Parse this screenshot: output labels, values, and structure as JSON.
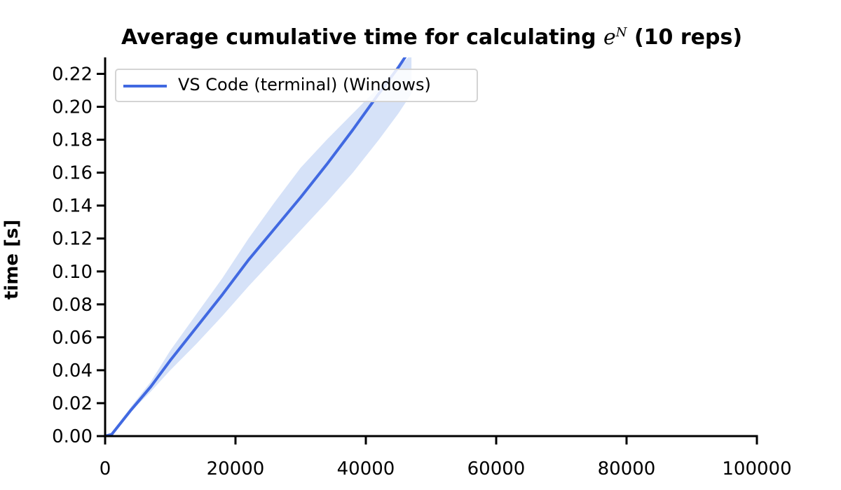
{
  "chart_data": {
    "type": "line",
    "title": {
      "prefix": "Average cumulative time for calculating ",
      "symbol_base": "e",
      "symbol_exp": "N",
      "suffix": " (10 reps)"
    },
    "xlabel": "",
    "ylabel": "time [s]",
    "xlim": [
      0,
      100000
    ],
    "ylim": [
      0,
      0.23
    ],
    "x_ticks": [
      0,
      20000,
      40000,
      60000,
      80000,
      100000
    ],
    "x_tick_labels": [
      "0",
      "20000",
      "40000",
      "60000",
      "80000",
      "100000"
    ],
    "y_ticks": [
      0,
      0.02,
      0.04,
      0.06,
      0.08,
      0.1,
      0.12,
      0.14,
      0.16,
      0.18,
      0.2,
      0.22
    ],
    "y_tick_labels": [
      "0.00",
      "0.02",
      "0.04",
      "0.06",
      "0.08",
      "0.10",
      "0.12",
      "0.14",
      "0.16",
      "0.18",
      "0.20",
      "0.22"
    ],
    "grid": false,
    "legend_position": "top-left",
    "series": [
      {
        "name": "VS Code (terminal) (Windows)",
        "color": "#4169e1",
        "band_color": "#d6e2f8",
        "x": [
          0,
          1000,
          4000,
          7000,
          10000,
          14000,
          18000,
          22000,
          26000,
          30000,
          34000,
          38000,
          42000,
          45000,
          46000,
          47000
        ],
        "y": [
          0,
          0.001,
          0.016,
          0.03,
          0.046,
          0.066,
          0.086,
          0.107,
          0.126,
          0.145,
          0.165,
          0.186,
          0.208,
          0.224,
          0.23,
          0.236
        ],
        "lower": [
          0,
          0.001,
          0.015,
          0.027,
          0.04,
          0.056,
          0.073,
          0.091,
          0.108,
          0.125,
          0.142,
          0.16,
          0.18,
          0.196,
          0.202,
          0.208
        ],
        "upper": [
          0,
          0.002,
          0.018,
          0.033,
          0.052,
          0.074,
          0.096,
          0.12,
          0.142,
          0.163,
          0.18,
          0.196,
          0.212,
          0.224,
          0.228,
          0.232
        ]
      }
    ]
  }
}
